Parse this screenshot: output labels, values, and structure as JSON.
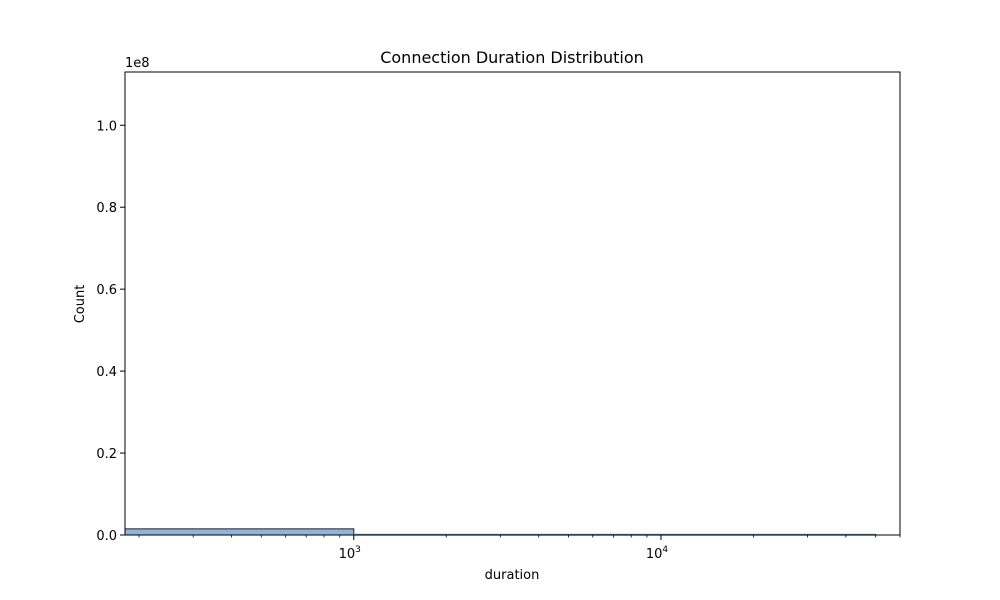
{
  "chart_data": {
    "type": "bar",
    "title": "Connection Duration Distribution",
    "xlabel": "duration",
    "ylabel": "Count",
    "x_scale": "log",
    "x_range": [
      180,
      60000
    ],
    "y_range": [
      0,
      113000000
    ],
    "y_offset_label": "1e8",
    "y_ticks": [
      {
        "value": 0,
        "label": "0.0"
      },
      {
        "value": 20000000,
        "label": "0.2"
      },
      {
        "value": 40000000,
        "label": "0.4"
      },
      {
        "value": 60000000,
        "label": "0.6"
      },
      {
        "value": 80000000,
        "label": "0.8"
      },
      {
        "value": 100000000,
        "label": "1.0"
      }
    ],
    "x_major_ticks": [
      {
        "value": 1000,
        "base": "10",
        "exp": "3"
      },
      {
        "value": 10000,
        "base": "10",
        "exp": "4"
      }
    ],
    "bins": [
      {
        "x0": 180,
        "x1": 1000,
        "count": 1500000
      },
      {
        "x0": 1000,
        "x1": 50000,
        "count": 150000
      }
    ],
    "bar_color": "#8fb4de",
    "bar_edge_color": "#1f1f1f",
    "line_color": "#4d8fc4",
    "grid": false
  }
}
